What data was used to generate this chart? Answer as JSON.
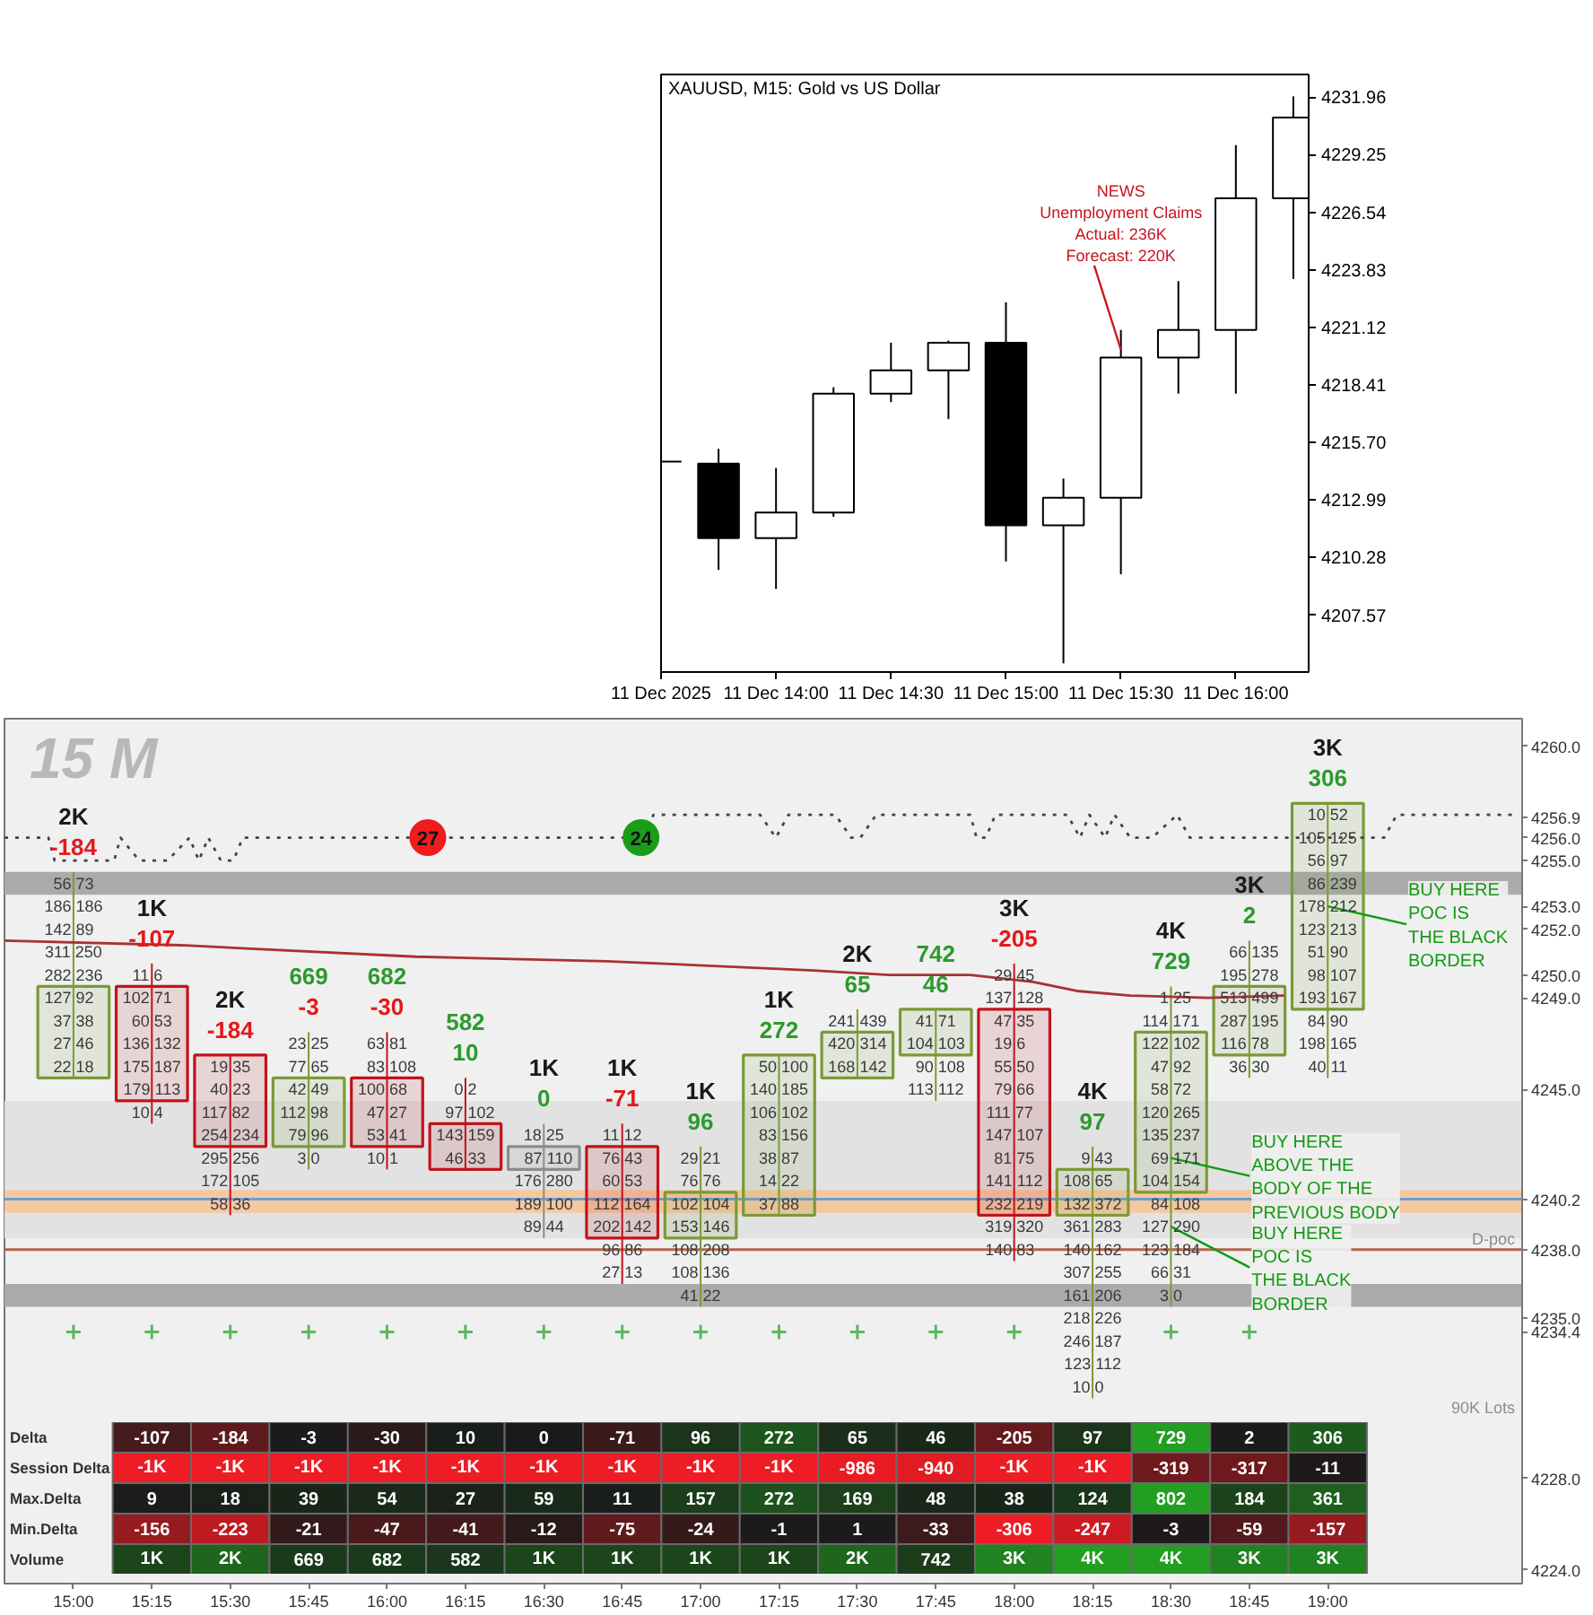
{
  "chart_data": [
    {
      "type": "candlestick",
      "title": "XAUUSD, M15: Gold vs US Dollar",
      "x": [
        "2025-12-11T13:30",
        "2025-12-11T13:45",
        "2025-12-11T14:00",
        "2025-12-11T14:15",
        "2025-12-11T14:30",
        "2025-12-11T14:45",
        "2025-12-11T15:00",
        "2025-12-11T15:15",
        "2025-12-11T15:30",
        "2025-12-11T15:45",
        "2025-12-11T16:00",
        "2025-12-11T16:15"
      ],
      "ohlc": [
        [
          4214.8,
          4214.8,
          4214.8,
          4214.8
        ],
        [
          4214.7,
          4215.4,
          4209.7,
          4211.2
        ],
        [
          4211.2,
          4214.5,
          4208.8,
          4212.4
        ],
        [
          4212.4,
          4218.3,
          4212.2,
          4218.0
        ],
        [
          4218.0,
          4220.4,
          4217.6,
          4219.1
        ],
        [
          4219.1,
          4220.5,
          4216.8,
          4220.4
        ],
        [
          4220.4,
          4222.3,
          4210.1,
          4211.8
        ],
        [
          4211.8,
          4214.0,
          4205.3,
          4213.1
        ],
        [
          4213.1,
          4221.0,
          4209.5,
          4219.7
        ],
        [
          4219.7,
          4223.3,
          4218.0,
          4221.0
        ],
        [
          4221.0,
          4229.7,
          4218.0,
          4227.2
        ],
        [
          4227.2,
          4232.0,
          4223.4,
          4231.0
        ]
      ],
      "color": "#000000",
      "colors": [
        "#000000",
        "#000000",
        "#ffffff",
        "#ffffff",
        "#ffffff",
        "#ffffff",
        "#000000",
        "#ffffff",
        "#ffffff",
        "#ffffff",
        "#ffffff",
        "#ffffff"
      ],
      "xlim": [
        "2025-12-11T13:30",
        "2025-12-11T16:19"
      ],
      "xticks": [
        {
          "value": "2025-12-11T13:30",
          "label": "11 Dec 2025"
        },
        {
          "value": "2025-12-11T14:00",
          "label": "11 Dec 14:00"
        },
        {
          "value": "2025-12-11T14:30",
          "label": "11 Dec 14:30"
        },
        {
          "value": "2025-12-11T15:00",
          "label": "11 Dec 15:00"
        },
        {
          "value": "2025-12-11T15:30",
          "label": "11 Dec 15:30"
        },
        {
          "value": "2025-12-11T16:00",
          "label": "11 Dec 16:00"
        }
      ],
      "ylim": [
        4204.89,
        4233.03
      ],
      "yticks": [
        4207.57,
        4210.28,
        4212.99,
        {
          "value": 4215.7,
          "label": "4215.70"
        },
        4218.41,
        4221.12,
        4223.83,
        4226.54,
        4229.25,
        4231.96
      ],
      "annotations": [
        {
          "text": "NEWS\nUnemployment Claims\nActual: 236K\nForecast: 220K",
          "x": "2025-12-11T15:30",
          "y": 4219.9
        }
      ]
    },
    {
      "type": "candlestick",
      "x": [
        15,
        15.25,
        15.5,
        15.75,
        16,
        16.25,
        16.5,
        16.75,
        17,
        17.25,
        17.5,
        17.75,
        18,
        18.25,
        18.5,
        18.75,
        19
      ],
      "ohlc": [
        [
          4245.5,
          4254.5,
          4245.5,
          4249.5
        ],
        [
          4249.5,
          4250.5,
          4243.5,
          4244.5
        ],
        [
          4246.5,
          4246.5,
          4239.5,
          4242.5
        ],
        [
          4242.5,
          4247.5,
          4241.5,
          4245.5
        ],
        [
          4245.5,
          4247.5,
          4241.5,
          4242.5
        ],
        [
          4243.5,
          4245.5,
          4241.5,
          4241.5
        ],
        [
          4242.5,
          4243.5,
          4238.5,
          4241.5
        ],
        [
          4242.5,
          4243.5,
          4236.5,
          4238.5
        ],
        [
          4238.5,
          4242.5,
          4235.5,
          4240.5
        ],
        [
          4239.5,
          4246.5,
          4239.5,
          4246.5
        ],
        [
          4245.5,
          4248.5,
          4245.5,
          4247.5
        ],
        [
          4246.5,
          4248.5,
          4244.5,
          4248.5
        ],
        [
          4248.5,
          4250.5,
          4237.5,
          4239.5
        ],
        [
          4239.5,
          4242.5,
          4231.5,
          4241.5
        ],
        [
          4240.5,
          4249.5,
          4235.5,
          4247.5
        ],
        [
          4246.5,
          4251.5,
          4245.5,
          4249.5
        ],
        [
          4248.5,
          4257.5,
          4245.5,
          4257.5
        ]
      ],
      "colors": [
        "#7a9a36",
        "#c0141c",
        "#c0141c",
        "#7a9a36",
        "#c0141c",
        "#c0141c",
        "#8c8c8c",
        "#c0141c",
        "#7a9a36",
        "#7a9a36",
        "#7a9a36",
        "#7a9a36",
        "#c0141c",
        "#7a9a36",
        "#7a9a36",
        "#7a9a36",
        "#7a9a36"
      ],
      "xlim": [
        14.78,
        19.62
      ],
      "xticks": [
        {
          "value": 15,
          "label": "15:00"
        },
        {
          "value": 15.25,
          "label": "15:15"
        },
        {
          "value": 15.5,
          "label": "15:30"
        },
        {
          "value": 15.75,
          "label": "15:45"
        },
        {
          "value": 16,
          "label": "16:00"
        },
        {
          "value": 16.25,
          "label": "16:15"
        },
        {
          "value": 16.5,
          "label": "16:30"
        },
        {
          "value": 16.75,
          "label": "16:45"
        },
        {
          "value": 17,
          "label": "17:00"
        },
        {
          "value": 17.25,
          "label": "17:15"
        },
        {
          "value": 17.5,
          "label": "17:30"
        },
        {
          "value": 17.75,
          "label": "17:45"
        },
        {
          "value": 18,
          "label": "18:00"
        },
        {
          "value": 18.25,
          "label": "18:15"
        },
        {
          "value": 18.5,
          "label": "18:30"
        },
        {
          "value": 18.75,
          "label": "18:45"
        },
        {
          "value": 19,
          "label": "19:00"
        }
      ],
      "ylim": [
        4223.4,
        4261.2
      ],
      "yticks": [
        {
          "value": 4260,
          "label": "4260.0"
        },
        4256.9,
        {
          "value": 4256,
          "label": "4256.0"
        },
        {
          "value": 4255,
          "label": "4255.0"
        },
        {
          "value": 4253,
          "label": "4253.0"
        },
        {
          "value": 4252,
          "label": "4252.0"
        },
        {
          "value": 4250,
          "label": "4250.0"
        },
        {
          "value": 4249,
          "label": "4249.0"
        },
        {
          "value": 4245,
          "label": "4245.0"
        },
        4240.2,
        {
          "value": 4238,
          "label": "4238.0"
        },
        {
          "value": 4235,
          "label": "4235.0"
        },
        4234.4,
        {
          "value": 4228,
          "label": "4228.0"
        },
        {
          "value": 4224,
          "label": "4224.0"
        }
      ],
      "bands": [
        {
          "axis": "y",
          "from": 4238.5,
          "to": 4244.5,
          "color": "#e2e2e2"
        },
        {
          "axis": "y",
          "from": 4253.5,
          "to": 4254.5,
          "color": "#ababab"
        },
        {
          "axis": "y",
          "from": 4235.5,
          "to": 4236.5,
          "color": "#ababab"
        },
        {
          "axis": "y",
          "from": 4239.6,
          "to": 4240.6,
          "color": "#f6c8a0"
        }
      ],
      "ref_lines": [
        {
          "axis": "y",
          "value": 4240.2,
          "color": "#6a9fd8"
        },
        {
          "axis": "y",
          "value": 4238.0,
          "label": "D-poc",
          "color": "#b5654a"
        }
      ],
      "series": [
        {
          "type": "line",
          "x": [
            14.78,
            15.34,
            16.09,
            16.7,
            17.36,
            17.6,
            17.86,
            18.06,
            18.2,
            18.37,
            18.62,
            18.86
          ],
          "values": [
            4251.5,
            4251.3,
            4250.8,
            4250.6,
            4250.2,
            4250.0,
            4250.0,
            4249.7,
            4249.3,
            4249.1,
            4249.0,
            4249.1
          ],
          "color": "#a83232"
        },
        {
          "type": "line",
          "line_style": "dotted",
          "color": "#444444",
          "x": [
            14.78,
            14.92,
            14.94,
            15.13,
            15.15,
            15.21,
            15.3,
            15.37,
            15.4,
            15.43,
            15.47,
            15.51,
            15.54,
            16.81,
            16.85,
            17.19,
            17.24,
            17.28,
            17.43,
            17.48,
            17.51,
            17.56,
            17.86,
            17.88,
            17.91,
            17.94,
            18.17,
            18.21,
            18.24,
            18.29,
            18.32,
            18.37,
            18.44,
            18.52,
            18.56,
            19.18,
            19.22,
            19.6
          ],
          "values": [
            4256,
            4256,
            4255,
            4255,
            4256,
            4255,
            4255,
            4256,
            4255,
            4256,
            4255,
            4255,
            4256,
            4256,
            4257,
            4257,
            4256,
            4257,
            4257,
            4256,
            4256,
            4257,
            4257,
            4256,
            4256,
            4257,
            4257,
            4256,
            4257,
            4256,
            4257,
            4256,
            4256,
            4257,
            4256,
            4256,
            4257,
            4257
          ]
        },
        {
          "type": "scatter",
          "marker": "circle",
          "x": [
            16.13,
            16.81
          ],
          "values": [
            4256,
            4256
          ],
          "colors": [
            "#ee1c1c",
            "#1a9e1a"
          ]
        },
        {
          "type": "scatter",
          "marker": "cross",
          "color": "#5cb85c",
          "x": [
            15,
            15.25,
            15.5,
            15.75,
            16,
            16.25,
            16.5,
            16.75,
            17,
            17.25,
            17.5,
            17.75,
            18,
            18.5,
            18.75
          ],
          "values": [
            4234.4,
            4234.4,
            4234.4,
            4234.4,
            4234.4,
            4234.4,
            4234.4,
            4234.4,
            4234.4,
            4234.4,
            4234.4,
            4234.4,
            4234.4,
            4234.4,
            4234.4
          ]
        }
      ],
      "annotations": [
        "15 M",
        "90K Lots",
        {
          "text": "27",
          "x": 16.13,
          "y": 4256
        },
        {
          "text": "24",
          "x": 16.81,
          "y": 4256
        },
        {
          "text": "2K",
          "x": 15,
          "y": 4254.5
        },
        {
          "text": "-184",
          "x": 15,
          "y": 4254.5
        },
        {
          "text": "1K",
          "x": 15.25,
          "y": 4250.5
        },
        {
          "text": "-107",
          "x": 15.25,
          "y": 4250.5
        },
        {
          "text": "2K",
          "x": 15.5,
          "y": 4246.5
        },
        {
          "text": "-184",
          "x": 15.5,
          "y": 4246.5
        },
        {
          "text": "669",
          "x": 15.75,
          "y": 4247.5
        },
        {
          "text": "-3",
          "x": 15.75,
          "y": 4247.5
        },
        {
          "text": "682",
          "x": 16,
          "y": 4247.5
        },
        {
          "text": "-30",
          "x": 16,
          "y": 4247.5
        },
        {
          "text": "582",
          "x": 16.25,
          "y": 4245.5
        },
        {
          "text": "10",
          "x": 16.25,
          "y": 4245.5
        },
        {
          "text": "1K",
          "x": 16.5,
          "y": 4243.5
        },
        {
          "text": "0",
          "x": 16.5,
          "y": 4243.5
        },
        {
          "text": "1K",
          "x": 16.75,
          "y": 4243.5
        },
        {
          "text": "-71",
          "x": 16.75,
          "y": 4243.5
        },
        {
          "text": "1K",
          "x": 17,
          "y": 4242.5
        },
        {
          "text": "96",
          "x": 17,
          "y": 4242.5
        },
        {
          "text": "1K",
          "x": 17.25,
          "y": 4246.5
        },
        {
          "text": "272",
          "x": 17.25,
          "y": 4246.5
        },
        {
          "text": "2K",
          "x": 17.5,
          "y": 4248.5
        },
        {
          "text": "65",
          "x": 17.5,
          "y": 4248.5
        },
        {
          "text": "742",
          "x": 17.75,
          "y": 4248.5
        },
        {
          "text": "46",
          "x": 17.75,
          "y": 4248.5
        },
        {
          "text": "3K",
          "x": 18,
          "y": 4250.5
        },
        {
          "text": "-205",
          "x": 18,
          "y": 4250.5
        },
        {
          "text": "4K",
          "x": 18.25,
          "y": 4242.5
        },
        {
          "text": "97",
          "x": 18.25,
          "y": 4242.5
        },
        {
          "text": "4K",
          "x": 18.5,
          "y": 4249.5
        },
        {
          "text": "729",
          "x": 18.5,
          "y": 4249.5
        },
        {
          "text": "3K",
          "x": 18.75,
          "y": 4251.5
        },
        {
          "text": "2",
          "x": 18.75,
          "y": 4251.5
        },
        {
          "text": "3K",
          "x": 19,
          "y": 4257.5
        },
        {
          "text": "306",
          "x": 19,
          "y": 4257.5
        },
        {
          "text": "56 73",
          "x": 15,
          "y": 4254
        },
        {
          "text": "186 186",
          "x": 15,
          "y": 4253
        },
        {
          "text": "142 89",
          "x": 15,
          "y": 4252
        },
        {
          "text": "311 250",
          "x": 15,
          "y": 4251
        },
        {
          "text": "282 236",
          "x": 15,
          "y": 4250
        },
        {
          "text": "127 92",
          "x": 15,
          "y": 4249
        },
        {
          "text": "37 38",
          "x": 15,
          "y": 4248
        },
        {
          "text": "27 46",
          "x": 15,
          "y": 4247
        },
        {
          "text": "22 18",
          "x": 15,
          "y": 4246
        },
        {
          "text": "11 6",
          "x": 15.25,
          "y": 4250
        },
        {
          "text": "102 71",
          "x": 15.25,
          "y": 4249
        },
        {
          "text": "60 53",
          "x": 15.25,
          "y": 4248
        },
        {
          "text": "136 132",
          "x": 15.25,
          "y": 4247
        },
        {
          "text": "175 187",
          "x": 15.25,
          "y": 4246
        },
        {
          "text": "179 113",
          "x": 15.25,
          "y": 4245
        },
        {
          "text": "10 4",
          "x": 15.25,
          "y": 4244
        },
        {
          "text": "19 35",
          "x": 15.5,
          "y": 4246
        },
        {
          "text": "40 23",
          "x": 15.5,
          "y": 4245
        },
        {
          "text": "117 82",
          "x": 15.5,
          "y": 4244
        },
        {
          "text": "254 234",
          "x": 15.5,
          "y": 4243
        },
        {
          "text": "295 256",
          "x": 15.5,
          "y": 4242
        },
        {
          "text": "172 105",
          "x": 15.5,
          "y": 4241
        },
        {
          "text": "58 36",
          "x": 15.5,
          "y": 4240
        },
        {
          "text": "23 25",
          "x": 15.75,
          "y": 4247
        },
        {
          "text": "77 65",
          "x": 15.75,
          "y": 4246
        },
        {
          "text": "42 49",
          "x": 15.75,
          "y": 4245
        },
        {
          "text": "112 98",
          "x": 15.75,
          "y": 4244
        },
        {
          "text": "79 96",
          "x": 15.75,
          "y": 4243
        },
        {
          "text": "3 0",
          "x": 15.75,
          "y": 4242
        },
        {
          "text": "63 81",
          "x": 16,
          "y": 4247
        },
        {
          "text": "83 108",
          "x": 16,
          "y": 4246
        },
        {
          "text": "100 68",
          "x": 16,
          "y": 4245
        },
        {
          "text": "47 27",
          "x": 16,
          "y": 4244
        },
        {
          "text": "53 41",
          "x": 16,
          "y": 4243
        },
        {
          "text": "10 1",
          "x": 16,
          "y": 4242
        },
        {
          "text": "0 2",
          "x": 16.25,
          "y": 4245
        },
        {
          "text": "97 102",
          "x": 16.25,
          "y": 4244
        },
        {
          "text": "143 159",
          "x": 16.25,
          "y": 4243
        },
        {
          "text": "46 33",
          "x": 16.25,
          "y": 4242
        },
        {
          "text": "18 25",
          "x": 16.5,
          "y": 4243
        },
        {
          "text": "87 110",
          "x": 16.5,
          "y": 4242
        },
        {
          "text": "176 280",
          "x": 16.5,
          "y": 4241
        },
        {
          "text": "189 100",
          "x": 16.5,
          "y": 4240
        },
        {
          "text": "89 44",
          "x": 16.5,
          "y": 4239
        },
        {
          "text": "11 12",
          "x": 16.75,
          "y": 4243
        },
        {
          "text": "76 43",
          "x": 16.75,
          "y": 4242
        },
        {
          "text": "60 53",
          "x": 16.75,
          "y": 4241
        },
        {
          "text": "112 164",
          "x": 16.75,
          "y": 4240
        },
        {
          "text": "202 142",
          "x": 16.75,
          "y": 4239
        },
        {
          "text": "96 86",
          "x": 16.75,
          "y": 4238
        },
        {
          "text": "27 13",
          "x": 16.75,
          "y": 4237
        },
        {
          "text": "29 21",
          "x": 17,
          "y": 4242
        },
        {
          "text": "76 76",
          "x": 17,
          "y": 4241
        },
        {
          "text": "102 104",
          "x": 17,
          "y": 4240
        },
        {
          "text": "153 146",
          "x": 17,
          "y": 4239
        },
        {
          "text": "108 208",
          "x": 17,
          "y": 4238
        },
        {
          "text": "108 136",
          "x": 17,
          "y": 4237
        },
        {
          "text": "41 22",
          "x": 17,
          "y": 4236
        },
        {
          "text": "50 100",
          "x": 17.25,
          "y": 4246
        },
        {
          "text": "140 185",
          "x": 17.25,
          "y": 4245
        },
        {
          "text": "106 102",
          "x": 17.25,
          "y": 4244
        },
        {
          "text": "83 156",
          "x": 17.25,
          "y": 4243
        },
        {
          "text": "38 87",
          "x": 17.25,
          "y": 4242
        },
        {
          "text": "14 22",
          "x": 17.25,
          "y": 4241
        },
        {
          "text": "37 88",
          "x": 17.25,
          "y": 4240
        },
        {
          "text": "241 439",
          "x": 17.5,
          "y": 4248
        },
        {
          "text": "420 314",
          "x": 17.5,
          "y": 4247
        },
        {
          "text": "168 142",
          "x": 17.5,
          "y": 4246
        },
        {
          "text": "41 71",
          "x": 17.75,
          "y": 4248
        },
        {
          "text": "104 103",
          "x": 17.75,
          "y": 4247
        },
        {
          "text": "90 108",
          "x": 17.75,
          "y": 4246
        },
        {
          "text": "113 112",
          "x": 17.75,
          "y": 4245
        },
        {
          "text": "29 45",
          "x": 18,
          "y": 4250
        },
        {
          "text": "137 128",
          "x": 18,
          "y": 4249
        },
        {
          "text": "47 35",
          "x": 18,
          "y": 4248
        },
        {
          "text": "19 6",
          "x": 18,
          "y": 4247
        },
        {
          "text": "55 50",
          "x": 18,
          "y": 4246
        },
        {
          "text": "79 66",
          "x": 18,
          "y": 4245
        },
        {
          "text": "111 77",
          "x": 18,
          "y": 4244
        },
        {
          "text": "147 107",
          "x": 18,
          "y": 4243
        },
        {
          "text": "81 75",
          "x": 18,
          "y": 4242
        },
        {
          "text": "141 112",
          "x": 18,
          "y": 4241
        },
        {
          "text": "232 219",
          "x": 18,
          "y": 4240
        },
        {
          "text": "319 320",
          "x": 18,
          "y": 4239
        },
        {
          "text": "140 83",
          "x": 18,
          "y": 4238
        },
        {
          "text": "9 43",
          "x": 18.25,
          "y": 4242
        },
        {
          "text": "108 65",
          "x": 18.25,
          "y": 4241
        },
        {
          "text": "132 372",
          "x": 18.25,
          "y": 4240
        },
        {
          "text": "361 283",
          "x": 18.25,
          "y": 4239
        },
        {
          "text": "140 162",
          "x": 18.25,
          "y": 4238
        },
        {
          "text": "307 255",
          "x": 18.25,
          "y": 4237
        },
        {
          "text": "161 206",
          "x": 18.25,
          "y": 4236
        },
        {
          "text": "218 226",
          "x": 18.25,
          "y": 4235
        },
        {
          "text": "246 187",
          "x": 18.25,
          "y": 4234
        },
        {
          "text": "123 112",
          "x": 18.25,
          "y": 4233
        },
        {
          "text": "10 0",
          "x": 18.25,
          "y": 4232
        },
        {
          "text": "1 25",
          "x": 18.5,
          "y": 4249
        },
        {
          "text": "114 171",
          "x": 18.5,
          "y": 4248
        },
        {
          "text": "122 102",
          "x": 18.5,
          "y": 4247
        },
        {
          "text": "47 92",
          "x": 18.5,
          "y": 4246
        },
        {
          "text": "58 72",
          "x": 18.5,
          "y": 4245
        },
        {
          "text": "120 265",
          "x": 18.5,
          "y": 4244
        },
        {
          "text": "135 237",
          "x": 18.5,
          "y": 4243
        },
        {
          "text": "69 171",
          "x": 18.5,
          "y": 4242
        },
        {
          "text": "104 154",
          "x": 18.5,
          "y": 4241
        },
        {
          "text": "84 108",
          "x": 18.5,
          "y": 4240
        },
        {
          "text": "127 290",
          "x": 18.5,
          "y": 4239
        },
        {
          "text": "123 184",
          "x": 18.5,
          "y": 4238
        },
        {
          "text": "66 31",
          "x": 18.5,
          "y": 4237
        },
        {
          "text": "3 0",
          "x": 18.5,
          "y": 4236
        },
        {
          "text": "66 135",
          "x": 18.75,
          "y": 4251
        },
        {
          "text": "195 278",
          "x": 18.75,
          "y": 4250
        },
        {
          "text": "513 499",
          "x": 18.75,
          "y": 4249
        },
        {
          "text": "287 195",
          "x": 18.75,
          "y": 4248
        },
        {
          "text": "116 78",
          "x": 18.75,
          "y": 4247
        },
        {
          "text": "36 30",
          "x": 18.75,
          "y": 4246
        },
        {
          "text": "10 52",
          "x": 19,
          "y": 4257
        },
        {
          "text": "105 125",
          "x": 19,
          "y": 4256
        },
        {
          "text": "56 97",
          "x": 19,
          "y": 4255
        },
        {
          "text": "86 239",
          "x": 19,
          "y": 4254
        },
        {
          "text": "178 212",
          "x": 19,
          "y": 4253
        },
        {
          "text": "123 213",
          "x": 19,
          "y": 4252
        },
        {
          "text": "51 90",
          "x": 19,
          "y": 4251
        },
        {
          "text": "98 107",
          "x": 19,
          "y": 4250
        },
        {
          "text": "193 167",
          "x": 19,
          "y": 4249
        },
        {
          "text": "84 90",
          "x": 19,
          "y": 4248
        },
        {
          "text": "198 165",
          "x": 19,
          "y": 4247
        },
        {
          "text": "40 11",
          "x": 19,
          "y": 4246
        },
        {
          "text": "BUY HERE\nPOC IS\nTHE BLACK\nBORDER",
          "x": 19,
          "y": 4253
        },
        {
          "text": "BUY HERE\nABOVE THE\nBODY OF THE\nPREVIOUS BODY",
          "x": 18.5,
          "y": 4242
        },
        {
          "text": "BUY HERE\nPOC IS\nTHE BLACK\nBORDER",
          "x": 18.5,
          "y": 4239
        }
      ]
    },
    {
      "type": "heatmap",
      "tick_labels": "y",
      "categories": [
        null,
        null,
        null,
        null,
        null,
        null,
        null,
        null,
        null,
        null,
        null,
        null,
        null,
        null,
        null,
        null
      ],
      "y_categories": [
        "Delta",
        "Session Delta",
        "Max.Delta",
        "Min.Delta",
        "Volume"
      ],
      "cells": [
        [
          -107,
          -184,
          -3,
          -30,
          10,
          0,
          -71,
          96,
          272,
          65,
          46,
          -205,
          97,
          729,
          2,
          306
        ],
        [
          -1000,
          -1000,
          -1000,
          -1000,
          -1000,
          -1000,
          -1000,
          -1000,
          -1000,
          -986,
          -940,
          -1000,
          -1000,
          -319,
          -317,
          -11
        ],
        [
          9,
          18,
          39,
          54,
          27,
          59,
          11,
          157,
          272,
          169,
          48,
          38,
          124,
          802,
          184,
          361
        ],
        [
          -156,
          -223,
          -21,
          -47,
          -41,
          -12,
          -75,
          -24,
          -1,
          1,
          -33,
          -306,
          -247,
          -3,
          -59,
          -157
        ],
        [
          1000,
          2000,
          669,
          682,
          582,
          1000,
          1000,
          1000,
          1000,
          2000,
          742,
          3000,
          4000,
          4000,
          3000,
          3000
        ]
      ],
      "cell_labels": [
        [
          "-107",
          "-184",
          "-3",
          "-30",
          "10",
          "0",
          "-71",
          "96",
          "272",
          "65",
          "46",
          "-205",
          "97",
          "729",
          "2",
          "306"
        ],
        [
          "-1K",
          "-1K",
          "-1K",
          "-1K",
          "-1K",
          "-1K",
          "-1K",
          "-1K",
          "-1K",
          "-986",
          "-940",
          "-1K",
          "-1K",
          "-319",
          "-317",
          "-11"
        ],
        [
          "9",
          "18",
          "39",
          "54",
          "27",
          "59",
          "11",
          "157",
          "272",
          "169",
          "48",
          "38",
          "124",
          "802",
          "184",
          "361"
        ],
        [
          "-156",
          "-223",
          "-21",
          "-47",
          "-41",
          "-12",
          "-75",
          "-24",
          "-1",
          "1",
          "-33",
          "-306",
          "-247",
          "-3",
          "-59",
          "-157"
        ],
        [
          "1K",
          "2K",
          "669",
          "682",
          "582",
          "1K",
          "1K",
          "1K",
          "1K",
          "2K",
          "742",
          "3K",
          "4K",
          "4K",
          "3K",
          "3K"
        ]
      ]
    }
  ]
}
